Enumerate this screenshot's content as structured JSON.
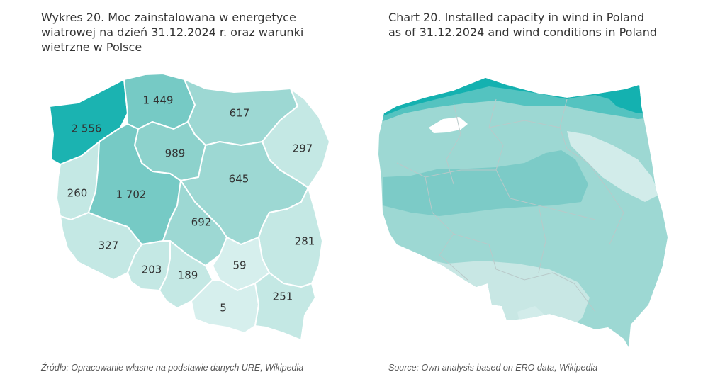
{
  "left_panel": {
    "title_lines": [
      "Wykres 20. Moc zainstalowana w energetyce",
      "wiatrowej na dzień 31.12.2024 r. oraz warunki",
      "wietrzne w Polsce"
    ],
    "source": "Źródło: Opracowanie własne na podstawie danych URE, Wikipedia"
  },
  "right_panel": {
    "title_lines": [
      "Chart 20. Installed capacity in wind in Poland",
      "as of 31.12.2024 and wind conditions in Poland"
    ],
    "source": "Source: Own analysis based on ERO data, Wikipedia"
  },
  "regions": [
    {
      "id": "zachodniopomorskie",
      "value": "2 556",
      "color": "#1bb3b1"
    },
    {
      "id": "pomorskie",
      "value": "1 449",
      "color": "#76cac5"
    },
    {
      "id": "warminsko-mazurskie",
      "value": "617",
      "color": "#9dd8d3"
    },
    {
      "id": "podlaskie",
      "value": "297",
      "color": "#c4e8e4"
    },
    {
      "id": "kujawsko-pomorskie",
      "value": "989",
      "color": "#8dd2cc"
    },
    {
      "id": "lubuskie",
      "value": "260",
      "color": "#c4e8e4"
    },
    {
      "id": "wielkopolskie",
      "value": "1 702",
      "color": "#76cac5"
    },
    {
      "id": "mazowieckie",
      "value": "645",
      "color": "#9dd8d3"
    },
    {
      "id": "lodzkie",
      "value": "692",
      "color": "#9dd8d3"
    },
    {
      "id": "lubelskie",
      "value": "281",
      "color": "#c4e8e4"
    },
    {
      "id": "dolnoslaskie",
      "value": "327",
      "color": "#c4e8e4"
    },
    {
      "id": "opolskie",
      "value": "203",
      "color": "#c4e8e4"
    },
    {
      "id": "slaskie",
      "value": "189",
      "color": "#c4e8e4"
    },
    {
      "id": "swietokrzyskie",
      "value": "59",
      "color": "#d6efed"
    },
    {
      "id": "malopolskie",
      "value": "5",
      "color": "#d6efed"
    },
    {
      "id": "podkarpackie",
      "value": "251",
      "color": "#c4e8e4"
    }
  ],
  "wind_zones": [
    {
      "id": "coastal-strongest",
      "color": "#14b1b0"
    },
    {
      "id": "coastal-strong",
      "color": "#54c3c0"
    },
    {
      "id": "central-belt",
      "color": "#7ccbc7"
    },
    {
      "id": "general",
      "color": "#9dd8d3"
    },
    {
      "id": "east-light",
      "color": "#d2ecea"
    },
    {
      "id": "south-light",
      "color": "#c8e7e4"
    },
    {
      "id": "lagoon",
      "color": "#ffffff"
    }
  ]
}
